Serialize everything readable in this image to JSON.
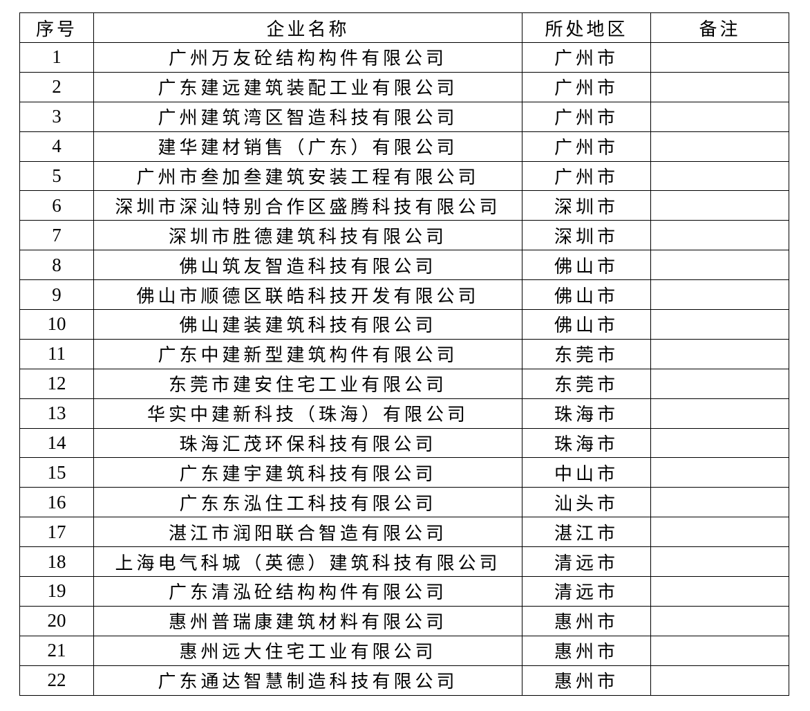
{
  "table": {
    "headers": [
      "序号",
      "企业名称",
      "所处地区",
      "备注"
    ],
    "rows": [
      {
        "no": "1",
        "name": "广州万友砼结构构件有限公司",
        "region": "广州市",
        "note": ""
      },
      {
        "no": "2",
        "name": "广东建远建筑装配工业有限公司",
        "region": "广州市",
        "note": ""
      },
      {
        "no": "3",
        "name": "广州建筑湾区智造科技有限公司",
        "region": "广州市",
        "note": ""
      },
      {
        "no": "4",
        "name": "建华建材销售（广东）有限公司",
        "region": "广州市",
        "note": ""
      },
      {
        "no": "5",
        "name": "广州市叁加叁建筑安装工程有限公司",
        "region": "广州市",
        "note": ""
      },
      {
        "no": "6",
        "name": "深圳市深汕特别合作区盛腾科技有限公司",
        "region": "深圳市",
        "note": ""
      },
      {
        "no": "7",
        "name": "深圳市胜德建筑科技有限公司",
        "region": "深圳市",
        "note": ""
      },
      {
        "no": "8",
        "name": "佛山筑友智造科技有限公司",
        "region": "佛山市",
        "note": ""
      },
      {
        "no": "9",
        "name": "佛山市顺德区联皓科技开发有限公司",
        "region": "佛山市",
        "note": ""
      },
      {
        "no": "10",
        "name": "佛山建装建筑科技有限公司",
        "region": "佛山市",
        "note": ""
      },
      {
        "no": "11",
        "name": "广东中建新型建筑构件有限公司",
        "region": "东莞市",
        "note": ""
      },
      {
        "no": "12",
        "name": "东莞市建安住宅工业有限公司",
        "region": "东莞市",
        "note": ""
      },
      {
        "no": "13",
        "name": "华实中建新科技（珠海）有限公司",
        "region": "珠海市",
        "note": ""
      },
      {
        "no": "14",
        "name": "珠海汇茂环保科技有限公司",
        "region": "珠海市",
        "note": ""
      },
      {
        "no": "15",
        "name": "广东建宇建筑科技有限公司",
        "region": "中山市",
        "note": ""
      },
      {
        "no": "16",
        "name": "广东东泓住工科技有限公司",
        "region": "汕头市",
        "note": ""
      },
      {
        "no": "17",
        "name": "湛江市润阳联合智造有限公司",
        "region": "湛江市",
        "note": ""
      },
      {
        "no": "18",
        "name": "上海电气科城（英德）建筑科技有限公司",
        "region": "清远市",
        "note": ""
      },
      {
        "no": "19",
        "name": "广东清泓砼结构构件有限公司",
        "region": "清远市",
        "note": ""
      },
      {
        "no": "20",
        "name": "惠州普瑞康建筑材料有限公司",
        "region": "惠州市",
        "note": ""
      },
      {
        "no": "21",
        "name": "惠州远大住宅工业有限公司",
        "region": "惠州市",
        "note": ""
      },
      {
        "no": "22",
        "name": "广东通达智慧制造科技有限公司",
        "region": "惠州市",
        "note": ""
      }
    ]
  }
}
